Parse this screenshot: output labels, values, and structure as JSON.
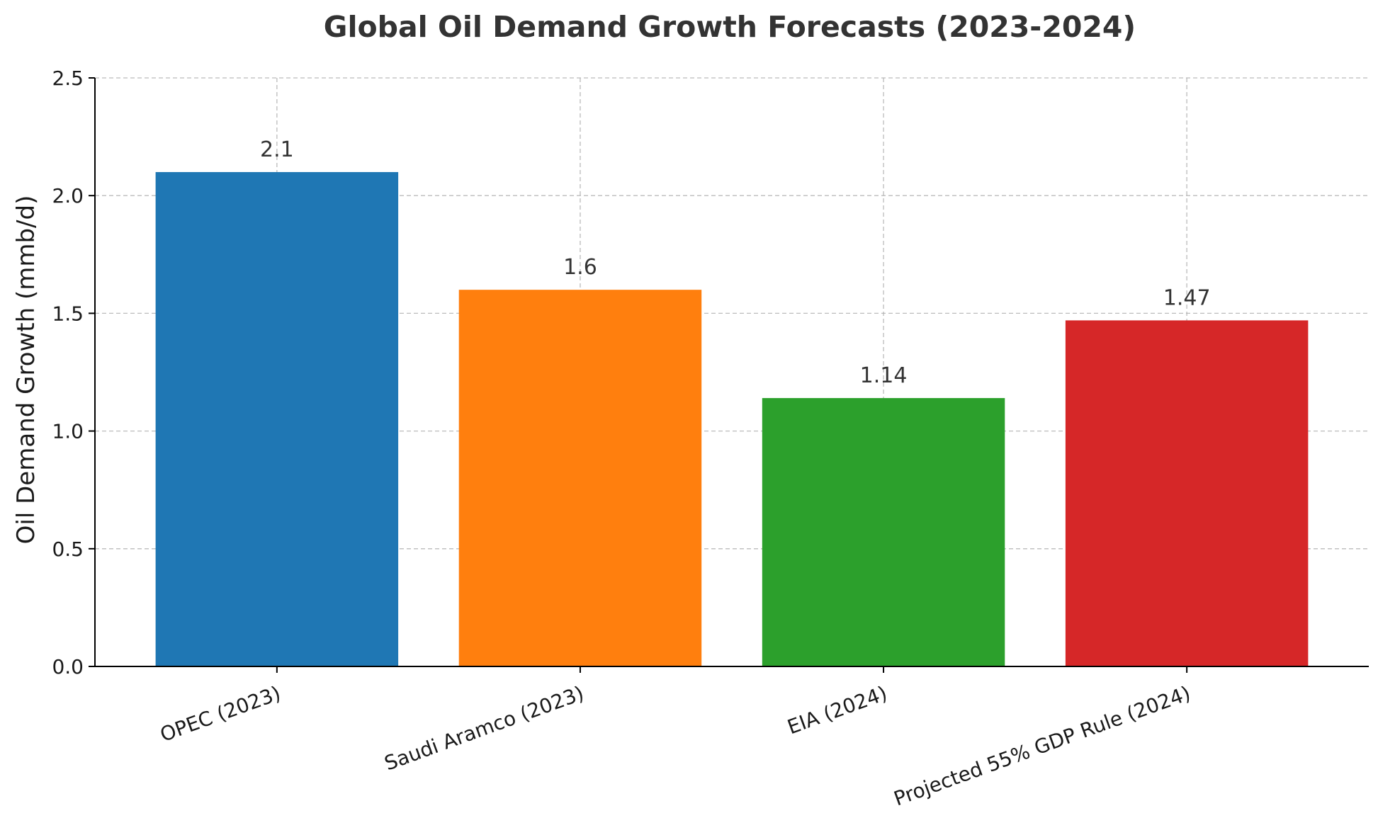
{
  "chart_data": {
    "type": "bar",
    "title": "Global Oil Demand Growth Forecasts (2023-2024)",
    "xlabel": "",
    "ylabel": "Oil Demand Growth (mmb/d)",
    "categories": [
      "OPEC (2023)",
      "Saudi Aramco (2023)",
      "EIA (2024)",
      "Projected 55% GDP Rule (2024)"
    ],
    "values": [
      2.1,
      1.6,
      1.14,
      1.47
    ],
    "data_labels": [
      "2.1",
      "1.6",
      "1.14",
      "1.47"
    ],
    "colors": [
      "#1f77b4",
      "#ff7f0e",
      "#2ca02c",
      "#d62728"
    ],
    "ylim": [
      0,
      2.5
    ],
    "yticks": [
      0.0,
      0.5,
      1.0,
      1.5,
      2.0,
      2.5
    ],
    "ytick_labels": [
      "0.0",
      "0.5",
      "1.0",
      "1.5",
      "2.0",
      "2.5"
    ],
    "grid": true,
    "legend": "none"
  }
}
